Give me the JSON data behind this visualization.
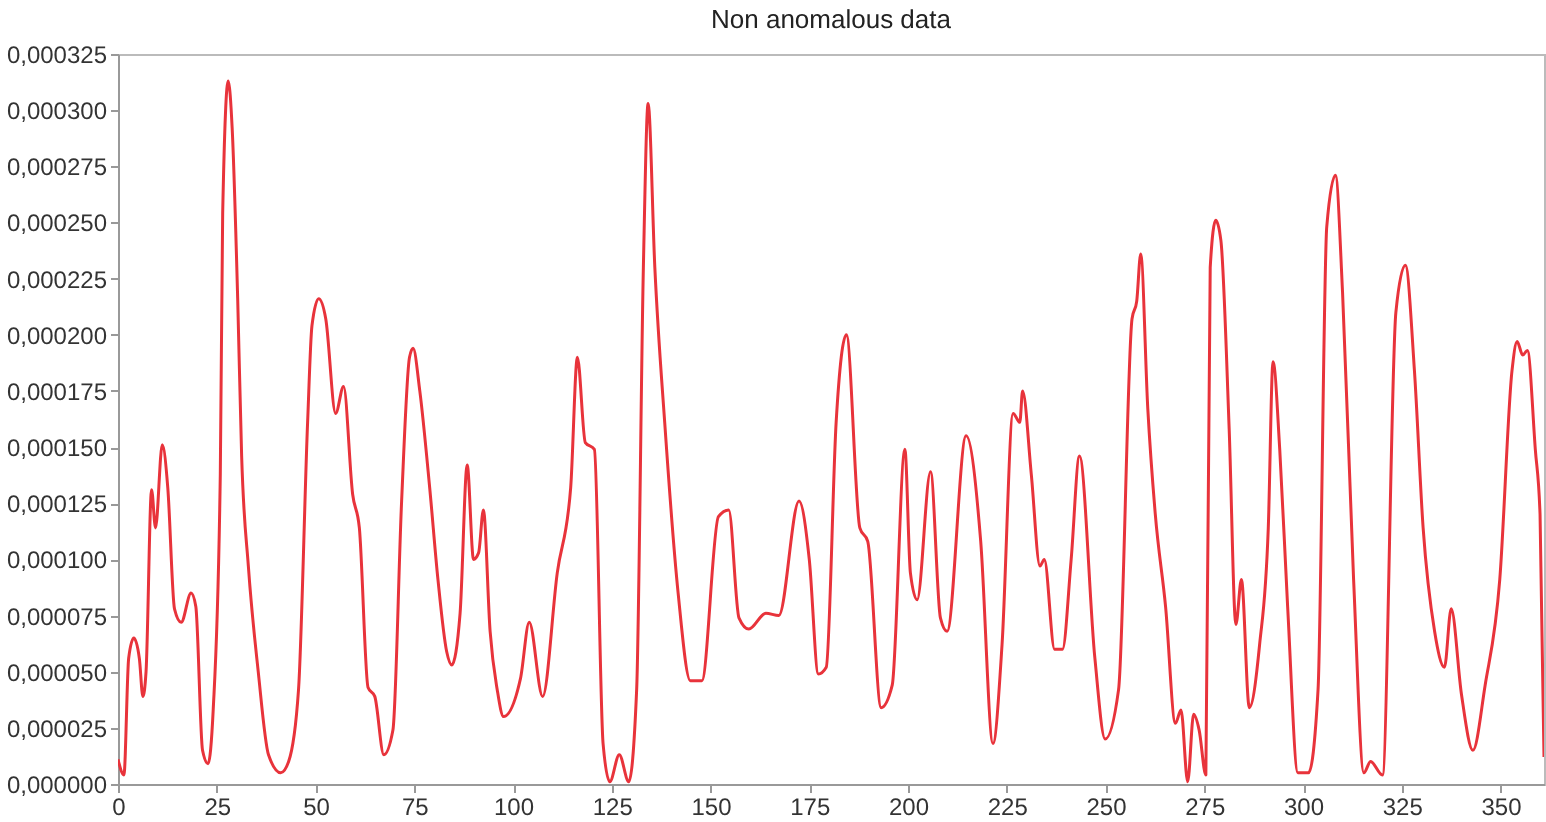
{
  "chart_data": {
    "type": "line",
    "title": "Non anomalous data",
    "xlim": [
      0,
      361
    ],
    "ylim": [
      0,
      0.000325
    ],
    "xticks": [
      0,
      25,
      50,
      75,
      100,
      125,
      150,
      175,
      200,
      225,
      250,
      275,
      300,
      325,
      350
    ],
    "yticks": [
      {
        "value": 0,
        "label": "0,000000"
      },
      {
        "value": 2.5e-05,
        "label": "0,000025"
      },
      {
        "value": 5e-05,
        "label": "0,000050"
      },
      {
        "value": 7.5e-05,
        "label": "0,000075"
      },
      {
        "value": 0.0001,
        "label": "0,000100"
      },
      {
        "value": 0.000125,
        "label": "0,000125"
      },
      {
        "value": 0.00015,
        "label": "0,000150"
      },
      {
        "value": 0.000175,
        "label": "0,000175"
      },
      {
        "value": 0.0002,
        "label": "0,000200"
      },
      {
        "value": 0.000225,
        "label": "0,000225"
      },
      {
        "value": 0.00025,
        "label": "0,000250"
      },
      {
        "value": 0.000275,
        "label": "0,000275"
      },
      {
        "value": 0.0003,
        "label": "0,000300"
      },
      {
        "value": 0.000325,
        "label": "0,000325"
      }
    ],
    "grid": false,
    "marker": "none",
    "line_style": "solid",
    "x": [
      0,
      1.5,
      2.7,
      4,
      5.4,
      6.3,
      7.1,
      8.5,
      9.5,
      11.2,
      12.6,
      14.3,
      16,
      18.5,
      19.7,
      21.4,
      22.8,
      24.1,
      25.9,
      26.5,
      27.9,
      28.9,
      30.3,
      31.3,
      33,
      35.5,
      38.1,
      41.2,
      43.2,
      45.7,
      48,
      49.1,
      50.8,
      52.6,
      55.1,
      57.1,
      59.4,
      61.1,
      63.3,
      65,
      67.3,
      69.6,
      71.8,
      73.8,
      74.7,
      76.4,
      78.9,
      81,
      83.2,
      84.5,
      86.6,
      88.4,
      90,
      91.3,
      92.5,
      94.2,
      96,
      97.6,
      101.9,
      104.1,
      107.5,
      111.2,
      114.6,
      116.3,
      118.3,
      120.6,
      122.8,
      124.5,
      126.9,
      129.3,
      131.3,
      133,
      134.2,
      135.9,
      138.4,
      141.8,
      144.9,
      147.8,
      152,
      154.6,
      157.2,
      159.7,
      164,
      167.3,
      172.4,
      175,
      177.3,
      179.3,
      181.8,
      184.4,
      187.8,
      189.8,
      193.2,
      196,
      199.2,
      200.6,
      202.3,
      205.7,
      208.2,
      209.9,
      214.7,
      218.4,
      221.5,
      223.8,
      226.6,
      228.3,
      229,
      231.2,
      233.4,
      234.5,
      237.1,
      239.1,
      241.3,
      243.4,
      247.3,
      249.9,
      253.3,
      256.7,
      257.9,
      258.9,
      260.7,
      262.6,
      265.2,
      267.7,
      269.1,
      270.8,
      272.3,
      273.7,
      275.4,
      276.5,
      277.9,
      279.2,
      281.3,
      283,
      284.4,
      286.4,
      289,
      291.2,
      292.4,
      294.1,
      296.1,
      298.7,
      301.4,
      303.8,
      306,
      308.2,
      310,
      312.8,
      315.4,
      317.1,
      320.1,
      323.5,
      325.9,
      328.2,
      330.4,
      333.3,
      335.8,
      337.5,
      340.1,
      343,
      346.1,
      349.8,
      352.9,
      354.2,
      355.6,
      356.8,
      358.8,
      360,
      361
    ],
    "series": [
      {
        "color": "#e8333b",
        "values": [
          1.1e-05,
          4e-06,
          5.6e-05,
          6.5e-05,
          5.6e-05,
          3.9e-05,
          5e-05,
          0.000131,
          0.000114,
          0.000151,
          0.000132,
          7.8e-05,
          7.2e-05,
          8.5e-05,
          7.9e-05,
          1.5e-05,
          9e-06,
          3.3e-05,
          0.000138,
          0.000254,
          0.000313,
          0.000292,
          0.000216,
          0.000146,
          9.7e-05,
          5e-05,
          1.3e-05,
          5e-06,
          1e-05,
          4.2e-05,
          0.000161,
          0.000204,
          0.000216,
          0.000207,
          0.000165,
          0.000177,
          0.000129,
          0.000114,
          4.3e-05,
          3.9e-05,
          1.3e-05,
          2.4e-05,
          0.000126,
          0.00019,
          0.000194,
          0.000175,
          0.000132,
          9.1e-05,
          5.9e-05,
          5.3e-05,
          7.6e-05,
          0.000142,
          0.0001,
          0.000103,
          0.000122,
          6.8e-05,
          4.2e-05,
          3e-05,
          4.7e-05,
          7.2e-05,
          3.9e-05,
          9.4e-05,
          0.000132,
          0.00019,
          0.000152,
          0.000149,
          1.8e-05,
          1e-06,
          1.3e-05,
          1e-06,
          4.2e-05,
          0.00023,
          0.000303,
          0.00023,
          0.000161,
          8.5e-05,
          4.6e-05,
          4.6e-05,
          0.000119,
          0.000122,
          7.4e-05,
          6.9e-05,
          7.6e-05,
          7.5e-05,
          0.000126,
          0.0001,
          4.9e-05,
          5.2e-05,
          0.000161,
          0.0002,
          0.000114,
          0.000108,
          3.4e-05,
          4.4e-05,
          0.000149,
          9.4e-05,
          8.2e-05,
          0.000139,
          7.4e-05,
          6.8e-05,
          0.000155,
          0.000108,
          1.8e-05,
          6.2e-05,
          0.000165,
          0.000161,
          0.000175,
          0.000138,
          9.7e-05,
          0.0001,
          6e-05,
          6e-05,
          0.0001,
          0.000146,
          5.6e-05,
          2e-05,
          4.2e-05,
          0.000207,
          0.000215,
          0.000236,
          0.000167,
          0.00012,
          7.9e-05,
          2.7e-05,
          3.3e-05,
          1e-06,
          3.1e-05,
          2.4e-05,
          4e-06,
          0.00023,
          0.000251,
          0.000242,
          0.000158,
          7.1e-05,
          9.1e-05,
          3.4e-05,
          6.2e-05,
          0.000114,
          0.000188,
          0.000149,
          7.9e-05,
          5e-06,
          5e-06,
          4.2e-05,
          0.000248,
          0.000271,
          0.000219,
          9.1e-05,
          5e-06,
          1e-05,
          4e-06,
          0.00021,
          0.000231,
          0.000184,
          0.000114,
          6.8e-05,
          5.2e-05,
          7.8e-05,
          4e-05,
          1.5e-05,
          4.4e-05,
          9.1e-05,
          0.000184,
          0.000197,
          0.000191,
          0.000193,
          0.000149,
          0.00012,
          1.2e-05
        ]
      }
    ]
  }
}
